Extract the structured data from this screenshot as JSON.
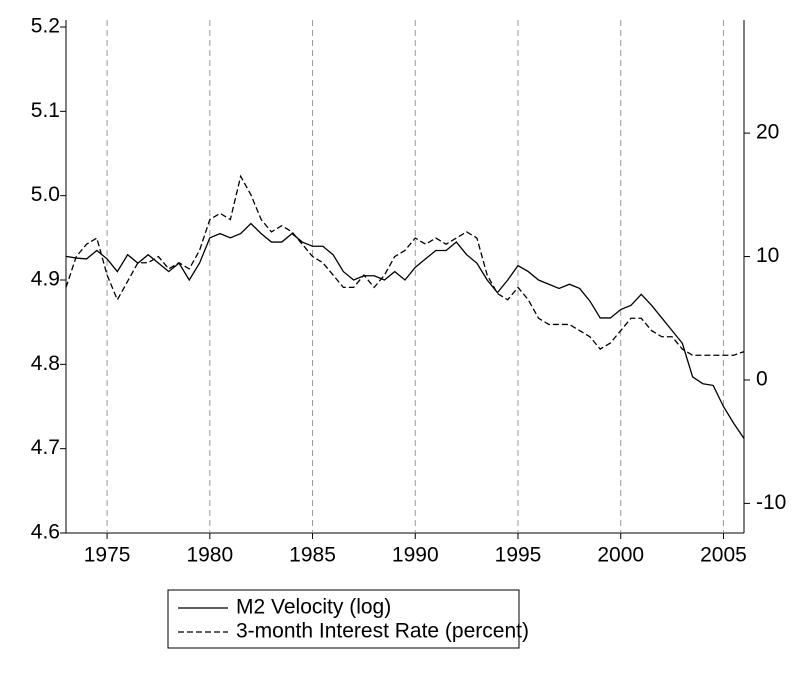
{
  "chart_data": {
    "type": "line",
    "x": [
      1973,
      1973.5,
      1974,
      1974.5,
      1975,
      1975.5,
      1976,
      1976.5,
      1977,
      1977.5,
      1978,
      1978.5,
      1979,
      1979.5,
      1980,
      1980.5,
      1981,
      1981.5,
      1982,
      1982.5,
      1983,
      1983.5,
      1984,
      1984.5,
      1985,
      1985.5,
      1986,
      1986.5,
      1987,
      1987.5,
      1988,
      1988.5,
      1989,
      1989.5,
      1990,
      1990.5,
      1991,
      1991.5,
      1992,
      1992.5,
      1993,
      1993.5,
      1994,
      1994.5,
      1995,
      1995.5,
      1996,
      1996.5,
      1997,
      1997.5,
      1998,
      1998.5,
      1999,
      1999.5,
      2000,
      2000.5,
      2001,
      2001.5,
      2002,
      2002.5,
      2003,
      2003.5,
      2004,
      2004.5,
      2005,
      2005.5,
      2006
    ],
    "series": [
      {
        "name": "M2 Velocity (log)",
        "color": "#000000",
        "line_style": "solid",
        "values": [
          4.928,
          4.926,
          4.925,
          4.935,
          4.925,
          4.91,
          4.93,
          4.92,
          4.93,
          4.92,
          4.91,
          4.92,
          4.9,
          4.92,
          4.95,
          4.955,
          4.95,
          4.955,
          4.967,
          4.955,
          4.945,
          4.945,
          4.955,
          4.945,
          4.94,
          4.94,
          4.93,
          4.91,
          4.9,
          4.905,
          4.905,
          4.9,
          4.91,
          4.9,
          4.915,
          4.925,
          4.935,
          4.935,
          4.945,
          4.93,
          4.92,
          4.9,
          4.885,
          4.9,
          4.917,
          4.91,
          4.9,
          4.895,
          4.89,
          4.895,
          4.89,
          4.875,
          4.855,
          4.855,
          4.865,
          4.87,
          4.883,
          4.87,
          4.855,
          4.84,
          4.825,
          4.785,
          4.777,
          4.775,
          4.75,
          4.73,
          4.712
        ]
      },
      {
        "name": "3-month Interest Rate (percent)",
        "color": "#000000",
        "line_style": "dashed",
        "axis": "y2",
        "values": [
          7.5,
          10,
          11,
          11.5,
          8.5,
          6.5,
          8,
          9.5,
          9.5,
          10,
          9,
          9.5,
          9,
          10.5,
          13,
          13.5,
          13,
          16.5,
          15,
          13,
          12,
          12.5,
          12,
          11,
          10,
          9.5,
          8.5,
          7.5,
          7.5,
          8.5,
          7.5,
          8.5,
          10,
          10.5,
          11.5,
          11,
          11.5,
          11,
          11.5,
          12,
          11.5,
          8.5,
          7,
          6.5,
          7.5,
          6.5,
          5,
          4.5,
          4.5,
          4.5,
          4,
          3.5,
          2.5,
          3,
          4,
          5,
          5,
          4,
          3.5,
          3.5,
          2.5,
          2,
          2,
          2,
          2,
          2,
          2.3
        ]
      }
    ],
    "xlim": [
      1973,
      2006
    ],
    "xticks": [
      1975,
      1980,
      1985,
      1990,
      1995,
      2000,
      2005
    ],
    "ylim": [
      4.6,
      5.2
    ],
    "yticks": [
      4.6,
      4.7,
      4.8,
      4.9,
      {
        "value": 5,
        "label": "5.0"
      },
      5.1,
      5.2
    ],
    "y2lim": [
      -12.4,
      28.6
    ],
    "y2ticks": [
      -10,
      0,
      10,
      20
    ],
    "x_grid": true,
    "legend": "bottom"
  }
}
